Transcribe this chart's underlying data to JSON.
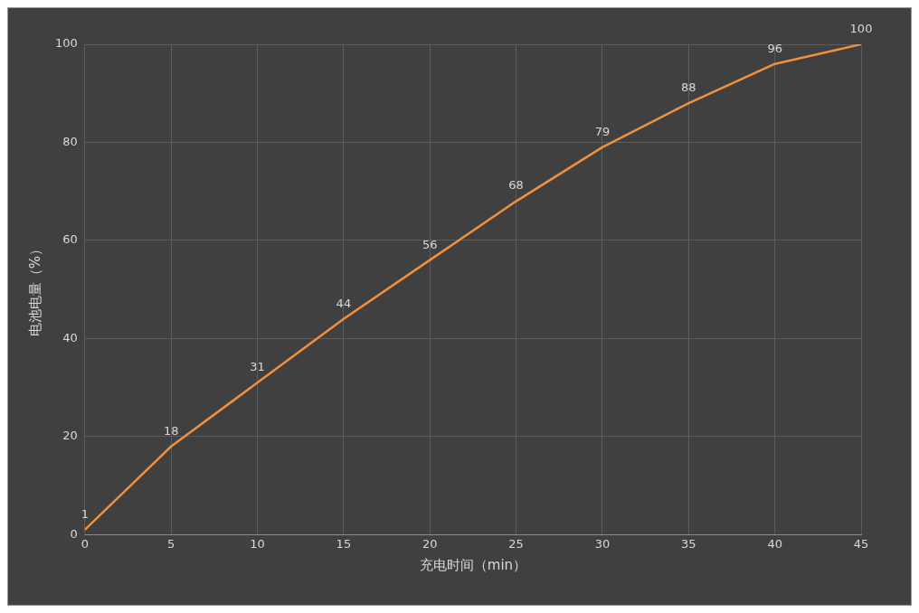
{
  "chart_data": {
    "type": "line",
    "xlabel": "充电时间（min）",
    "ylabel": "电池电量（%）",
    "x": [
      0,
      5,
      10,
      15,
      20,
      25,
      30,
      35,
      40,
      45
    ],
    "series": [
      {
        "color": "#f0913f",
        "values": [
          1,
          18,
          31,
          44,
          56,
          68,
          79,
          88,
          96,
          100
        ]
      }
    ],
    "xlim": [
      0,
      45
    ],
    "xticks": [
      0,
      5,
      10,
      15,
      20,
      25,
      30,
      35,
      40,
      45
    ],
    "ylim": [
      0,
      100
    ],
    "yticks": [
      0,
      20,
      40,
      60,
      80,
      100
    ],
    "grid": true,
    "legend": false,
    "marker": "none",
    "line_style": "solid",
    "data_labels": true
  }
}
